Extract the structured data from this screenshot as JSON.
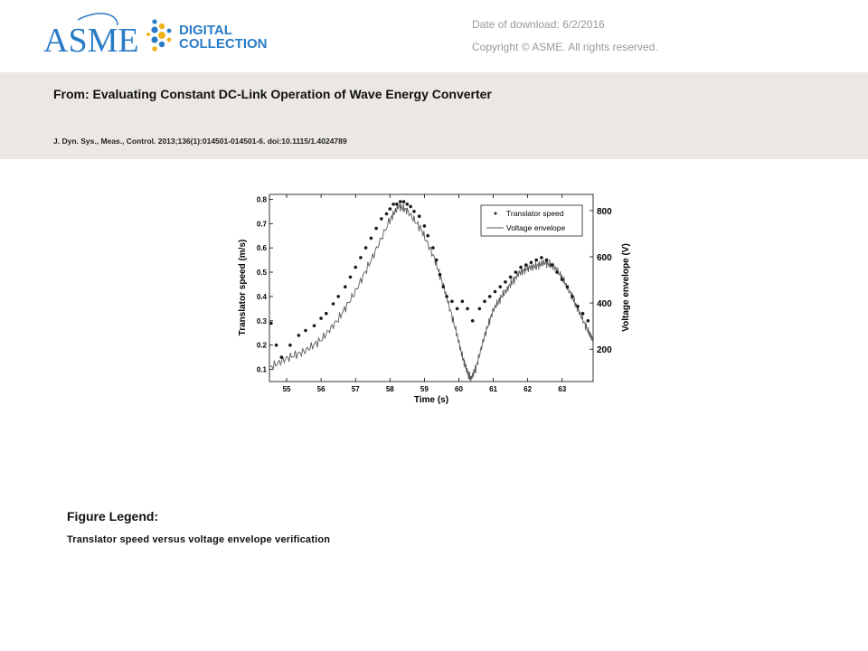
{
  "header": {
    "logo": {
      "wordmark": "ASME",
      "line1": "DIGITAL",
      "line2": "COLLECTION"
    },
    "date_label": "Date of download:",
    "date_value": "6/2/2016",
    "copyright": "Copyright © ASME. All rights reserved."
  },
  "article": {
    "from_title": "From: Evaluating Constant DC-Link Operation of Wave Energy Converter",
    "citation": "J. Dyn. Sys., Meas., Control. 2013;136(1):014501-014501-6. doi:10.1115/1.4024789"
  },
  "legend": {
    "heading": "Figure Legend:",
    "text": "Translator speed versus voltage envelope verification"
  },
  "colors": {
    "band": "#ebe8e3",
    "meta_text": "#999999",
    "logo_blue": "#2a7cc7",
    "logo_dots_yellow": "#f2b21b"
  },
  "chart_data": {
    "type": "scatter",
    "xlabel": "Time (s)",
    "ylabel": "Translator speed (m/s)",
    "y2label": "Voltage envelope (V)",
    "xlim": [
      54.5,
      63.9
    ],
    "ylim": [
      0.05,
      0.82
    ],
    "y2lim": [
      60,
      870
    ],
    "xticks": [
      55,
      56,
      57,
      58,
      59,
      60,
      61,
      62,
      63
    ],
    "yticks": [
      0.1,
      0.2,
      0.3,
      0.4,
      0.5,
      0.6,
      0.7,
      0.8
    ],
    "y2ticks": [
      200,
      400,
      600,
      800
    ],
    "legend_position": "top-right",
    "series": [
      {
        "name": "Translator speed",
        "marker": "dot",
        "axis": "left",
        "points": [
          [
            54.55,
            0.29
          ],
          [
            54.7,
            0.2
          ],
          [
            54.85,
            0.15
          ],
          [
            55.1,
            0.2
          ],
          [
            55.35,
            0.24
          ],
          [
            55.55,
            0.26
          ],
          [
            55.8,
            0.28
          ],
          [
            56.0,
            0.31
          ],
          [
            56.15,
            0.33
          ],
          [
            56.35,
            0.37
          ],
          [
            56.5,
            0.4
          ],
          [
            56.7,
            0.44
          ],
          [
            56.85,
            0.48
          ],
          [
            57.0,
            0.52
          ],
          [
            57.15,
            0.56
          ],
          [
            57.3,
            0.6
          ],
          [
            57.45,
            0.64
          ],
          [
            57.6,
            0.68
          ],
          [
            57.75,
            0.72
          ],
          [
            57.9,
            0.74
          ],
          [
            58.0,
            0.76
          ],
          [
            58.1,
            0.78
          ],
          [
            58.2,
            0.78
          ],
          [
            58.3,
            0.79
          ],
          [
            58.4,
            0.79
          ],
          [
            58.5,
            0.78
          ],
          [
            58.6,
            0.77
          ],
          [
            58.7,
            0.75
          ],
          [
            58.85,
            0.73
          ],
          [
            59.0,
            0.69
          ],
          [
            59.1,
            0.65
          ],
          [
            59.25,
            0.6
          ],
          [
            59.35,
            0.55
          ],
          [
            59.45,
            0.49
          ],
          [
            59.55,
            0.44
          ],
          [
            59.65,
            0.4
          ],
          [
            59.8,
            0.38
          ],
          [
            59.95,
            0.35
          ],
          [
            60.1,
            0.38
          ],
          [
            60.25,
            0.35
          ],
          [
            60.4,
            0.3
          ],
          [
            60.6,
            0.35
          ],
          [
            60.75,
            0.38
          ],
          [
            60.9,
            0.4
          ],
          [
            61.05,
            0.42
          ],
          [
            61.2,
            0.44
          ],
          [
            61.35,
            0.46
          ],
          [
            61.5,
            0.48
          ],
          [
            61.65,
            0.5
          ],
          [
            61.8,
            0.52
          ],
          [
            61.95,
            0.53
          ],
          [
            62.1,
            0.54
          ],
          [
            62.25,
            0.55
          ],
          [
            62.4,
            0.56
          ],
          [
            62.55,
            0.55
          ],
          [
            62.7,
            0.53
          ],
          [
            62.85,
            0.5
          ],
          [
            63.0,
            0.47
          ],
          [
            63.15,
            0.44
          ],
          [
            63.3,
            0.4
          ],
          [
            63.45,
            0.36
          ],
          [
            63.6,
            0.33
          ],
          [
            63.75,
            0.3
          ]
        ]
      },
      {
        "name": "Voltage envelope",
        "marker": "line",
        "axis": "right",
        "points": [
          [
            54.5,
            120
          ],
          [
            55.0,
            160
          ],
          [
            55.5,
            190
          ],
          [
            56.0,
            240
          ],
          [
            56.5,
            330
          ],
          [
            57.0,
            450
          ],
          [
            57.5,
            600
          ],
          [
            58.0,
            760
          ],
          [
            58.25,
            820
          ],
          [
            58.5,
            800
          ],
          [
            58.9,
            720
          ],
          [
            59.3,
            590
          ],
          [
            59.6,
            450
          ],
          [
            59.9,
            290
          ],
          [
            60.1,
            170
          ],
          [
            60.25,
            100
          ],
          [
            60.35,
            70
          ],
          [
            60.5,
            120
          ],
          [
            60.75,
            260
          ],
          [
            61.0,
            370
          ],
          [
            61.25,
            430
          ],
          [
            61.5,
            480
          ],
          [
            61.75,
            530
          ],
          [
            62.0,
            550
          ],
          [
            62.25,
            560
          ],
          [
            62.5,
            575
          ],
          [
            62.75,
            560
          ],
          [
            63.0,
            510
          ],
          [
            63.25,
            440
          ],
          [
            63.5,
            360
          ],
          [
            63.75,
            280
          ],
          [
            63.9,
            240
          ]
        ]
      }
    ]
  }
}
